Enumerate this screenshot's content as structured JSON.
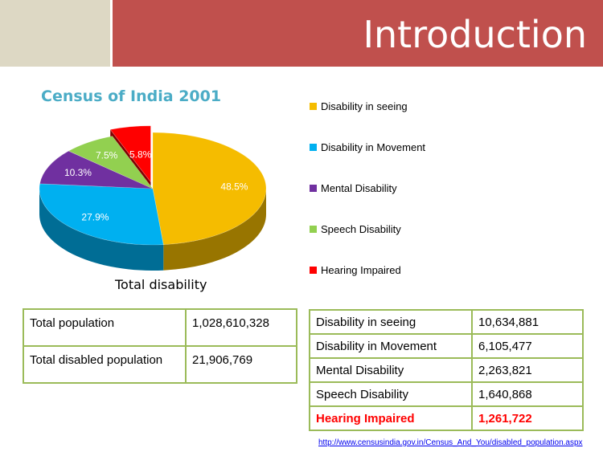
{
  "header": {
    "title": "Introduction"
  },
  "chart_data": {
    "type": "pie",
    "title": "Census of India 2001",
    "xlabel": "Total disability",
    "categories": [
      "Disability in seeing",
      "Disability in Movement",
      "Mental Disability",
      "Speech Disability",
      "Hearing Impaired"
    ],
    "values": [
      48.5,
      27.9,
      10.3,
      7.5,
      5.8
    ],
    "labels": [
      "48.5%",
      "27.9%",
      "10.3%",
      "7.5%",
      "5.8%"
    ],
    "colors": [
      "#f5bc00",
      "#00b0f0",
      "#7030a0",
      "#92d050",
      "#ff0000"
    ],
    "exploded": [
      false,
      false,
      false,
      false,
      true
    ],
    "legend_position": "right"
  },
  "population_table": {
    "rows": [
      {
        "label": "Total population",
        "value": "1,028,610,328"
      },
      {
        "label": "Total disabled population",
        "value": "21,906,769"
      }
    ]
  },
  "disability_table": {
    "rows": [
      {
        "label": "Disability in seeing",
        "value": "10,634,881"
      },
      {
        "label": "Disability in Movement",
        "value": "6,105,477"
      },
      {
        "label": "Mental Disability",
        "value": "2,263,821"
      },
      {
        "label": "Speech Disability",
        "value": "1,640,868"
      },
      {
        "label": "Hearing Impaired",
        "value": "1,261,722"
      }
    ]
  },
  "source": {
    "link_text": "http://www.censusindia.gov.in/Census_And_You/disabled_population.aspx"
  }
}
